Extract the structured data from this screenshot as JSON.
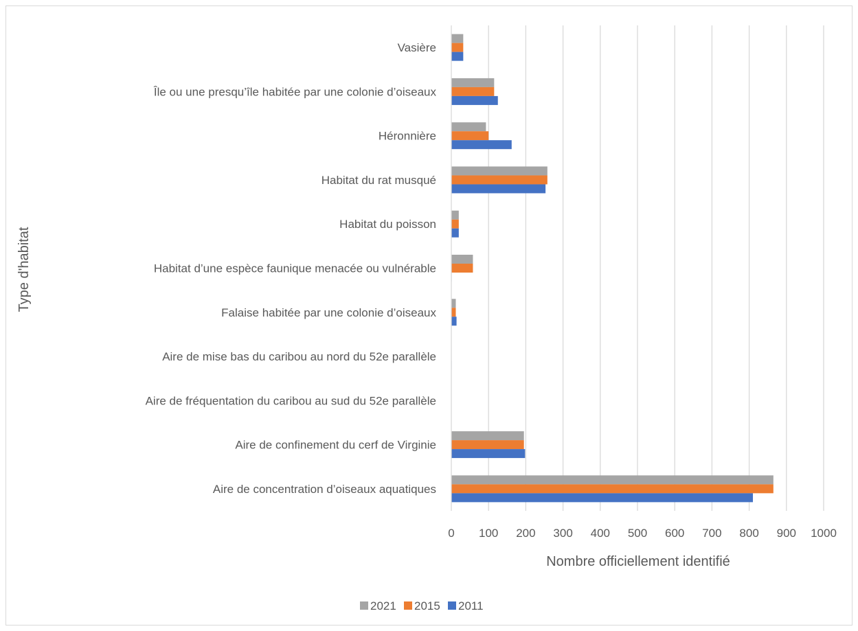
{
  "chart_data": {
    "type": "bar",
    "orientation": "horizontal",
    "title": "",
    "xlabel": "Nombre officiellement identifié",
    "ylabel": "Type d'habitat",
    "xlim": [
      0,
      1000
    ],
    "x_ticks": [
      0,
      100,
      200,
      300,
      400,
      500,
      600,
      700,
      800,
      900,
      1000
    ],
    "grid": "vertical",
    "legend_position": "bottom",
    "categories": [
      "Vasière",
      "Île ou une presqu’île habitée par une colonie d’oiseaux",
      "Héronnière",
      "Habitat du rat musqué",
      "Habitat du poisson",
      "Habitat d’une espèce faunique menacée ou vulnérable",
      "Falaise habitée par une colonie d’oiseaux",
      "Aire de mise bas du caribou au nord du 52e parallèle",
      "Aire de fréquentation du caribou au sud du 52e parallèle",
      "Aire de confinement du cerf de Virginie",
      "Aire de concentration d’oiseaux aquatiques"
    ],
    "series": [
      {
        "name": "2021",
        "color": "#a5a5a5",
        "values": [
          32,
          115,
          93,
          258,
          20,
          58,
          12,
          0,
          0,
          195,
          865
        ]
      },
      {
        "name": "2015",
        "color": "#ed7d31",
        "values": [
          32,
          115,
          100,
          258,
          20,
          58,
          12,
          0,
          0,
          195,
          865
        ]
      },
      {
        "name": "2011",
        "color": "#4472c4",
        "values": [
          32,
          125,
          162,
          253,
          20,
          1,
          14,
          1,
          0,
          198,
          810
        ]
      }
    ]
  }
}
